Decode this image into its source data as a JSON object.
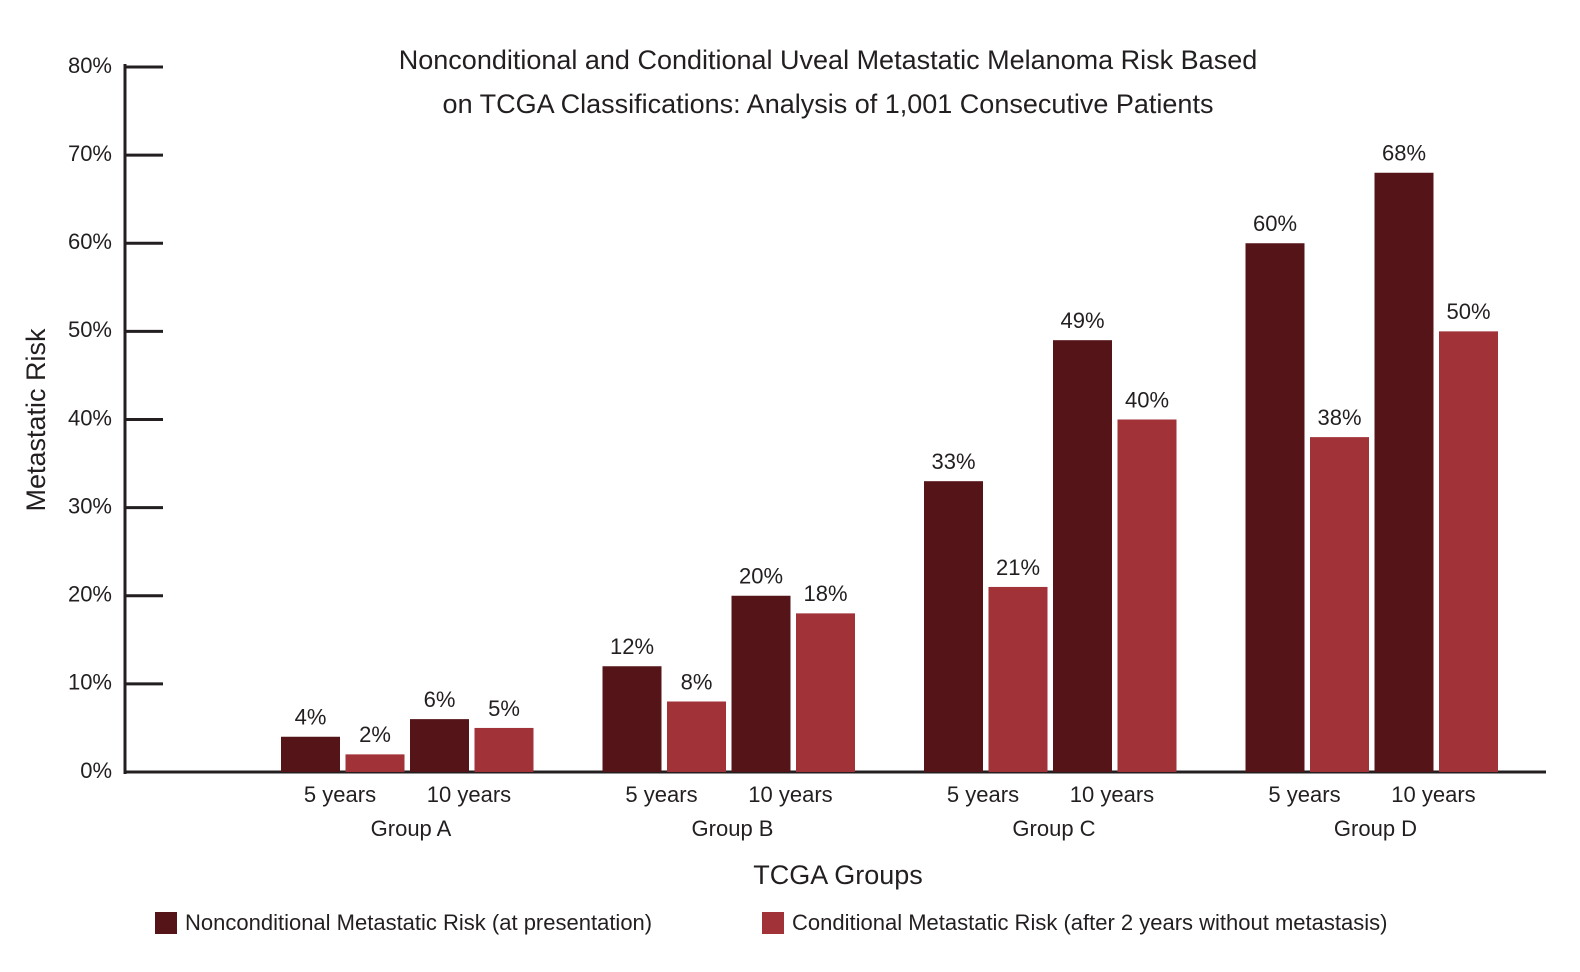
{
  "chart_data": {
    "type": "bar",
    "title": [
      "Nonconditional and Conditional Uveal Metastatic Melanoma Risk Based",
      "on TCGA Classifications: Analysis of 1,001 Consecutive Patients"
    ],
    "y_label": "Metastatic Risk",
    "x_label": "TCGA Groups",
    "groups": [
      "Group A",
      "Group B",
      "Group C",
      "Group D"
    ],
    "categories": [
      "5 years",
      "10 years",
      "5 years",
      "10 years",
      "5 years",
      "10 years",
      "5 years",
      "10 years"
    ],
    "series": [
      {
        "name": "Nonconditional Metastatic Risk (at presentation)",
        "color": "#551418",
        "values": [
          4,
          6,
          12,
          20,
          33,
          49,
          60,
          68
        ],
        "value_labels": [
          "4%",
          "6%",
          "12%",
          "20%",
          "33%",
          "49%",
          "60%",
          "68%"
        ]
      },
      {
        "name": "Conditional Metastatic Risk (after 2 years without metastasis)",
        "color": "#a13238",
        "values": [
          2,
          5,
          8,
          18,
          21,
          40,
          38,
          50
        ],
        "value_labels": [
          "2%",
          "5%",
          "8%",
          "18%",
          "21%",
          "40%",
          "38%",
          "50%"
        ]
      }
    ],
    "ylim": [
      0,
      80
    ],
    "yticks": [
      {
        "value": 0,
        "label": "0%"
      },
      {
        "value": 10,
        "label": "10%"
      },
      {
        "value": 20,
        "label": "20%"
      },
      {
        "value": 30,
        "label": "30%"
      },
      {
        "value": 40,
        "label": "40%"
      },
      {
        "value": 50,
        "label": "50%"
      },
      {
        "value": 60,
        "label": "60%"
      },
      {
        "value": 70,
        "label": "70%"
      },
      {
        "value": 80,
        "label": "80%"
      }
    ],
    "legend": "bottom"
  }
}
